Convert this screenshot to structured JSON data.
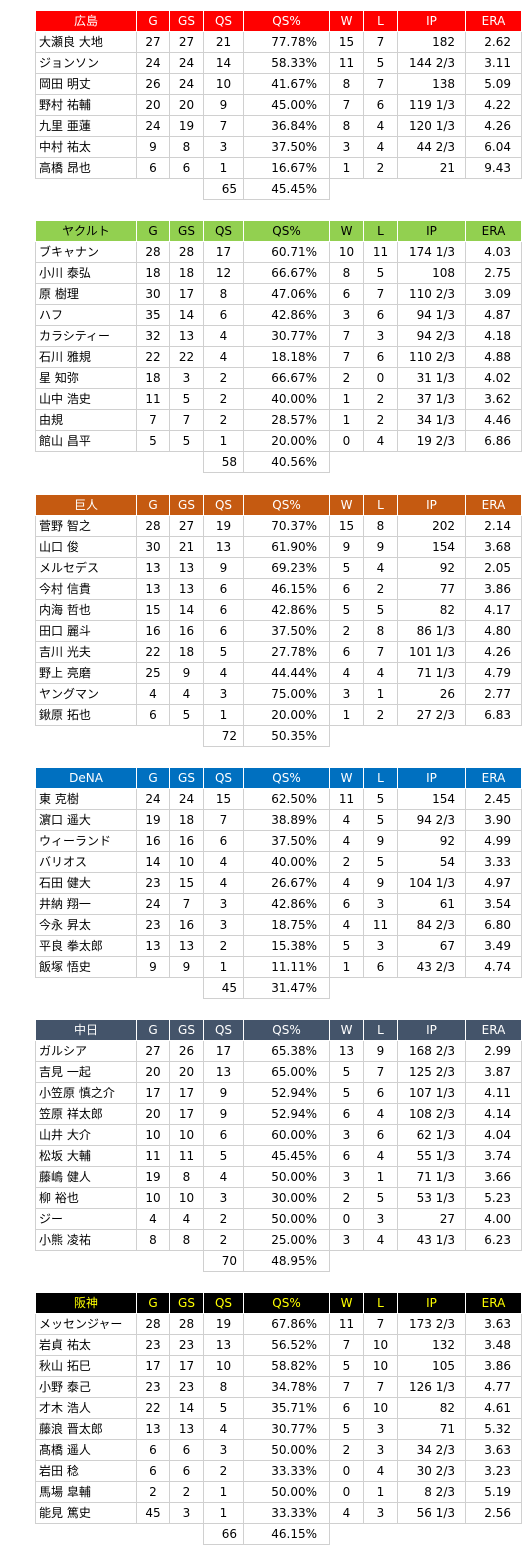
{
  "columns": [
    "G",
    "GS",
    "QS",
    "QS%",
    "W",
    "L",
    "IP",
    "ERA"
  ],
  "teams": [
    {
      "name": "広島",
      "header_bg": "#ff0000",
      "header_fg": "#ffffff",
      "rows": [
        [
          "大瀬良 大地",
          "27",
          "27",
          "21",
          "77.78%",
          "15",
          "7",
          "182",
          "2.62"
        ],
        [
          "ジョンソン",
          "24",
          "24",
          "14",
          "58.33%",
          "11",
          "5",
          "144 2/3",
          "3.11"
        ],
        [
          "岡田 明丈",
          "26",
          "24",
          "10",
          "41.67%",
          "8",
          "7",
          "138",
          "5.09"
        ],
        [
          "野村 祐輔",
          "20",
          "20",
          "9",
          "45.00%",
          "7",
          "6",
          "119 1/3",
          "4.22"
        ],
        [
          "九里 亜蓮",
          "24",
          "19",
          "7",
          "36.84%",
          "8",
          "4",
          "120 1/3",
          "4.26"
        ],
        [
          "中村 祐太",
          "9",
          "8",
          "3",
          "37.50%",
          "3",
          "4",
          "44 2/3",
          "6.04"
        ],
        [
          "高橋 昂也",
          "6",
          "6",
          "1",
          "16.67%",
          "1",
          "2",
          "21",
          "9.43"
        ]
      ],
      "total_qs": "65",
      "total_pct": "45.45%"
    },
    {
      "name": "ヤクルト",
      "header_bg": "#92d050",
      "header_fg": "#000000",
      "rows": [
        [
          "ブキャナン",
          "28",
          "28",
          "17",
          "60.71%",
          "10",
          "11",
          "174 1/3",
          "4.03"
        ],
        [
          "小川 泰弘",
          "18",
          "18",
          "12",
          "66.67%",
          "8",
          "5",
          "108",
          "2.75"
        ],
        [
          "原 樹理",
          "30",
          "17",
          "8",
          "47.06%",
          "6",
          "7",
          "110 2/3",
          "3.09"
        ],
        [
          "ハフ",
          "35",
          "14",
          "6",
          "42.86%",
          "3",
          "6",
          "94 1/3",
          "4.87"
        ],
        [
          "カラシティー",
          "32",
          "13",
          "4",
          "30.77%",
          "7",
          "3",
          "94 2/3",
          "4.18"
        ],
        [
          "石川 雅規",
          "22",
          "22",
          "4",
          "18.18%",
          "7",
          "6",
          "110 2/3",
          "4.88"
        ],
        [
          "星 知弥",
          "18",
          "3",
          "2",
          "66.67%",
          "2",
          "0",
          "31 1/3",
          "4.02"
        ],
        [
          "山中 浩史",
          "11",
          "5",
          "2",
          "40.00%",
          "1",
          "2",
          "37 1/3",
          "3.62"
        ],
        [
          "由規",
          "7",
          "7",
          "2",
          "28.57%",
          "1",
          "2",
          "34 1/3",
          "4.46"
        ],
        [
          "館山 昌平",
          "5",
          "5",
          "1",
          "20.00%",
          "0",
          "4",
          "19 2/3",
          "6.86"
        ]
      ],
      "total_qs": "58",
      "total_pct": "40.56%"
    },
    {
      "name": "巨人",
      "header_bg": "#c55a11",
      "header_fg": "#ffffff",
      "rows": [
        [
          "菅野 智之",
          "28",
          "27",
          "19",
          "70.37%",
          "15",
          "8",
          "202",
          "2.14"
        ],
        [
          "山口 俊",
          "30",
          "21",
          "13",
          "61.90%",
          "9",
          "9",
          "154",
          "3.68"
        ],
        [
          "メルセデス",
          "13",
          "13",
          "9",
          "69.23%",
          "5",
          "4",
          "92",
          "2.05"
        ],
        [
          "今村 信貴",
          "13",
          "13",
          "6",
          "46.15%",
          "6",
          "2",
          "77",
          "3.86"
        ],
        [
          "内海 哲也",
          "15",
          "14",
          "6",
          "42.86%",
          "5",
          "5",
          "82",
          "4.17"
        ],
        [
          "田口 麗斗",
          "16",
          "16",
          "6",
          "37.50%",
          "2",
          "8",
          "86 1/3",
          "4.80"
        ],
        [
          "吉川 光夫",
          "22",
          "18",
          "5",
          "27.78%",
          "6",
          "7",
          "101 1/3",
          "4.26"
        ],
        [
          "野上 亮磨",
          "25",
          "9",
          "4",
          "44.44%",
          "4",
          "4",
          "71 1/3",
          "4.79"
        ],
        [
          "ヤングマン",
          "4",
          "4",
          "3",
          "75.00%",
          "3",
          "1",
          "26",
          "2.77"
        ],
        [
          "鍬原 拓也",
          "6",
          "5",
          "1",
          "20.00%",
          "1",
          "2",
          "27 2/3",
          "6.83"
        ]
      ],
      "total_qs": "72",
      "total_pct": "50.35%"
    },
    {
      "name": "DeNA",
      "header_bg": "#0070c0",
      "header_fg": "#ffffff",
      "rows": [
        [
          "東 克樹",
          "24",
          "24",
          "15",
          "62.50%",
          "11",
          "5",
          "154",
          "2.45"
        ],
        [
          "濵口 遥大",
          "19",
          "18",
          "7",
          "38.89%",
          "4",
          "5",
          "94 2/3",
          "3.90"
        ],
        [
          "ウィーランド",
          "16",
          "16",
          "6",
          "37.50%",
          "4",
          "9",
          "92",
          "4.99"
        ],
        [
          "バリオス",
          "14",
          "10",
          "4",
          "40.00%",
          "2",
          "5",
          "54",
          "3.33"
        ],
        [
          "石田 健大",
          "23",
          "15",
          "4",
          "26.67%",
          "4",
          "9",
          "104 1/3",
          "4.97"
        ],
        [
          "井納 翔一",
          "24",
          "7",
          "3",
          "42.86%",
          "6",
          "3",
          "61",
          "3.54"
        ],
        [
          "今永 昇太",
          "23",
          "16",
          "3",
          "18.75%",
          "4",
          "11",
          "84 2/3",
          "6.80"
        ],
        [
          "平良 拳太郎",
          "13",
          "13",
          "2",
          "15.38%",
          "5",
          "3",
          "67",
          "3.49"
        ],
        [
          "飯塚 悟史",
          "9",
          "9",
          "1",
          "11.11%",
          "1",
          "6",
          "43 2/3",
          "4.74"
        ]
      ],
      "total_qs": "45",
      "total_pct": "31.47%"
    },
    {
      "name": "中日",
      "header_bg": "#44546a",
      "header_fg": "#ffffff",
      "rows": [
        [
          "ガルシア",
          "27",
          "26",
          "17",
          "65.38%",
          "13",
          "9",
          "168 2/3",
          "2.99"
        ],
        [
          "吉見 一起",
          "20",
          "20",
          "13",
          "65.00%",
          "5",
          "7",
          "125 2/3",
          "3.87"
        ],
        [
          "小笠原 慎之介",
          "17",
          "17",
          "9",
          "52.94%",
          "5",
          "6",
          "107 1/3",
          "4.11"
        ],
        [
          "笠原 祥太郎",
          "20",
          "17",
          "9",
          "52.94%",
          "6",
          "4",
          "108 2/3",
          "4.14"
        ],
        [
          "山井 大介",
          "10",
          "10",
          "6",
          "60.00%",
          "3",
          "6",
          "62 1/3",
          "4.04"
        ],
        [
          "松坂 大輔",
          "11",
          "11",
          "5",
          "45.45%",
          "6",
          "4",
          "55 1/3",
          "3.74"
        ],
        [
          "藤嶋 健人",
          "19",
          "8",
          "4",
          "50.00%",
          "3",
          "1",
          "71 1/3",
          "3.66"
        ],
        [
          "柳 裕也",
          "10",
          "10",
          "3",
          "30.00%",
          "2",
          "5",
          "53 1/3",
          "5.23"
        ],
        [
          "ジー",
          "4",
          "4",
          "2",
          "50.00%",
          "0",
          "3",
          "27",
          "4.00"
        ],
        [
          "小熊 凌祐",
          "8",
          "8",
          "2",
          "25.00%",
          "3",
          "4",
          "43 1/3",
          "6.23"
        ]
      ],
      "total_qs": "70",
      "total_pct": "48.95%"
    },
    {
      "name": "阪神",
      "header_bg": "#000000",
      "header_fg": "#ffff00",
      "rows": [
        [
          "メッセンジャー",
          "28",
          "28",
          "19",
          "67.86%",
          "11",
          "7",
          "173 2/3",
          "3.63"
        ],
        [
          "岩貞 祐太",
          "23",
          "23",
          "13",
          "56.52%",
          "7",
          "10",
          "132",
          "3.48"
        ],
        [
          "秋山 拓巳",
          "17",
          "17",
          "10",
          "58.82%",
          "5",
          "10",
          "105",
          "3.86"
        ],
        [
          "小野 泰己",
          "23",
          "23",
          "8",
          "34.78%",
          "7",
          "7",
          "126 1/3",
          "4.77"
        ],
        [
          "才木 浩人",
          "22",
          "14",
          "5",
          "35.71%",
          "6",
          "10",
          "82",
          "4.61"
        ],
        [
          "藤浪 晋太郎",
          "13",
          "13",
          "4",
          "30.77%",
          "5",
          "3",
          "71",
          "5.32"
        ],
        [
          "髙橋 遥人",
          "6",
          "6",
          "3",
          "50.00%",
          "2",
          "3",
          "34 2/3",
          "3.63"
        ],
        [
          "岩田 稔",
          "6",
          "6",
          "2",
          "33.33%",
          "0",
          "4",
          "30 2/3",
          "3.23"
        ],
        [
          "馬場 皐輔",
          "2",
          "2",
          "1",
          "50.00%",
          "0",
          "1",
          "8 2/3",
          "5.19"
        ],
        [
          "能見 篤史",
          "45",
          "3",
          "1",
          "33.33%",
          "4",
          "3",
          "56 1/3",
          "2.56"
        ]
      ],
      "total_qs": "66",
      "total_pct": "46.15%"
    }
  ]
}
